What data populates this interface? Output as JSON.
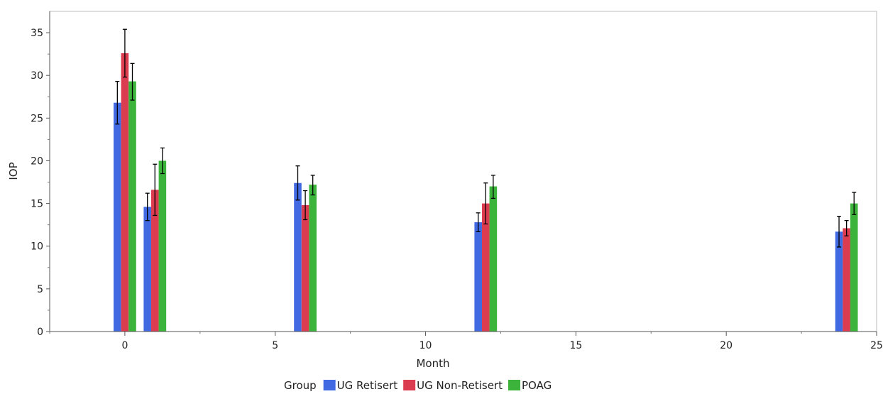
{
  "chart_data": {
    "type": "bar",
    "xlabel": "Month",
    "ylabel": "IOP",
    "xlim": [
      -2.5,
      25
    ],
    "ylim": [
      0,
      37.5
    ],
    "x_ticks": [
      0,
      5,
      10,
      15,
      20,
      25
    ],
    "y_ticks": [
      0,
      5,
      10,
      15,
      20,
      25,
      30,
      35
    ],
    "grid": false,
    "legend": {
      "title": "Group",
      "placement": "bottom-center"
    },
    "bar_width_months": 0.25,
    "series": [
      {
        "name": "UG Retisert",
        "color": "#4169e1",
        "points": [
          {
            "x": 0,
            "value": 26.8,
            "err_low": 24.3,
            "err_high": 29.3
          },
          {
            "x": 1,
            "value": 14.6,
            "err_low": 13.0,
            "err_high": 16.2
          },
          {
            "x": 6,
            "value": 17.4,
            "err_low": 15.4,
            "err_high": 19.4
          },
          {
            "x": 12,
            "value": 12.8,
            "err_low": 11.7,
            "err_high": 13.9
          },
          {
            "x": 24,
            "value": 11.7,
            "err_low": 9.9,
            "err_high": 13.5
          }
        ]
      },
      {
        "name": "UG Non-Retisert",
        "color": "#dc3c50",
        "points": [
          {
            "x": 0,
            "value": 32.6,
            "err_low": 29.8,
            "err_high": 35.4
          },
          {
            "x": 1,
            "value": 16.6,
            "err_low": 13.6,
            "err_high": 19.6
          },
          {
            "x": 6,
            "value": 14.8,
            "err_low": 13.1,
            "err_high": 16.5
          },
          {
            "x": 12,
            "value": 15.0,
            "err_low": 12.6,
            "err_high": 17.4
          },
          {
            "x": 24,
            "value": 12.1,
            "err_low": 11.2,
            "err_high": 13.0
          }
        ]
      },
      {
        "name": "POAG",
        "color": "#3cb43c",
        "points": [
          {
            "x": 0,
            "value": 29.3,
            "err_low": 27.1,
            "err_high": 31.4
          },
          {
            "x": 1,
            "value": 20.0,
            "err_low": 18.5,
            "err_high": 21.5
          },
          {
            "x": 6,
            "value": 17.2,
            "err_low": 16.0,
            "err_high": 18.3
          },
          {
            "x": 12,
            "value": 17.0,
            "err_low": 15.6,
            "err_high": 18.3
          },
          {
            "x": 24,
            "value": 15.0,
            "err_low": 13.7,
            "err_high": 16.3
          }
        ]
      }
    ]
  }
}
